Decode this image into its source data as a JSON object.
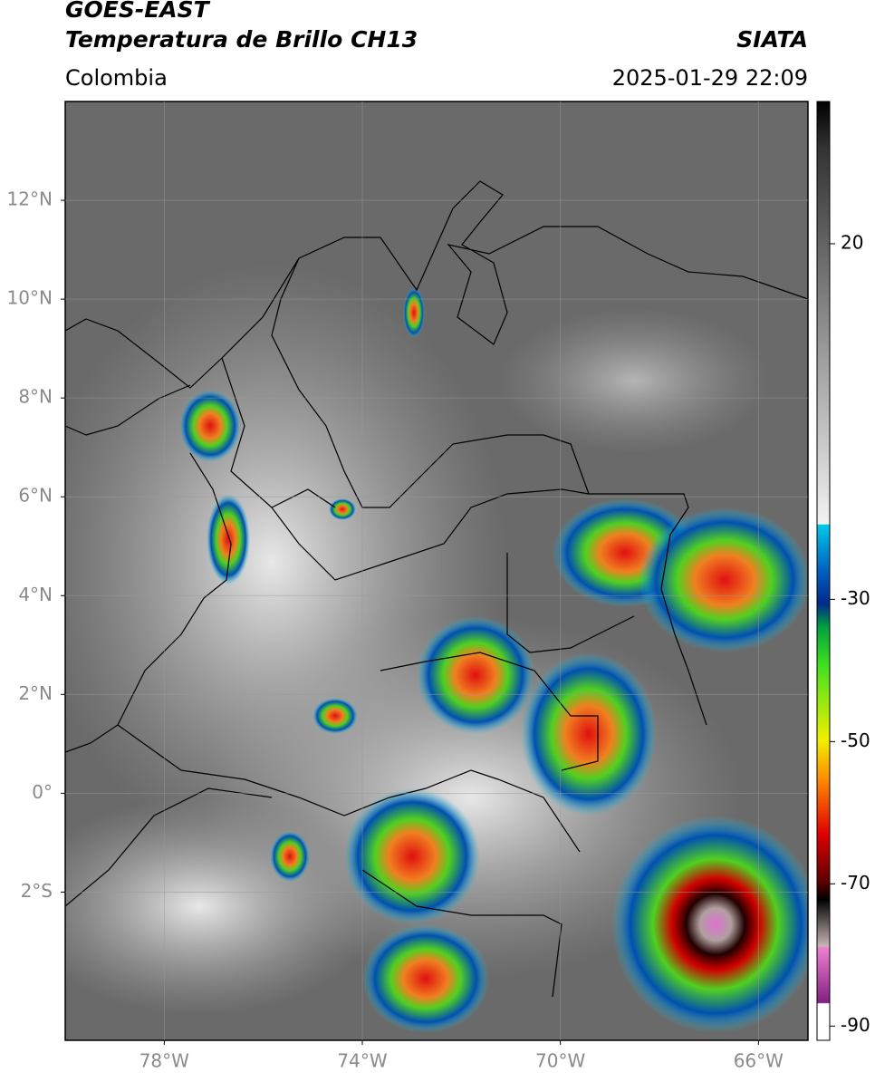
{
  "header": {
    "title_line1": "GOES-EAST",
    "title_line2": "Temperatura de Brillo CH13",
    "region": "Colombia",
    "source": "SIATA",
    "datetime": "2025-01-29 22:09"
  },
  "map": {
    "xlim": [
      -80,
      -65
    ],
    "ylim": [
      -5,
      14
    ],
    "xticks": [
      {
        "value": -78,
        "label": "78°W"
      },
      {
        "value": -74,
        "label": "74°W"
      },
      {
        "value": -70,
        "label": "70°W"
      },
      {
        "value": -66,
        "label": "66°W"
      }
    ],
    "yticks": [
      {
        "value": 12,
        "label": "12°N"
      },
      {
        "value": 10,
        "label": "10°N"
      },
      {
        "value": 8,
        "label": "8°N"
      },
      {
        "value": 6,
        "label": "6°N"
      },
      {
        "value": 4,
        "label": "4°N"
      },
      {
        "value": 2,
        "label": "2°N"
      },
      {
        "value": 0,
        "label": "0°"
      },
      {
        "value": -2,
        "label": "2°S"
      }
    ],
    "grid": true
  },
  "colorbar": {
    "lim": [
      -92,
      40
    ],
    "ticks": [
      20,
      -30,
      -50,
      -70,
      -90
    ]
  }
}
